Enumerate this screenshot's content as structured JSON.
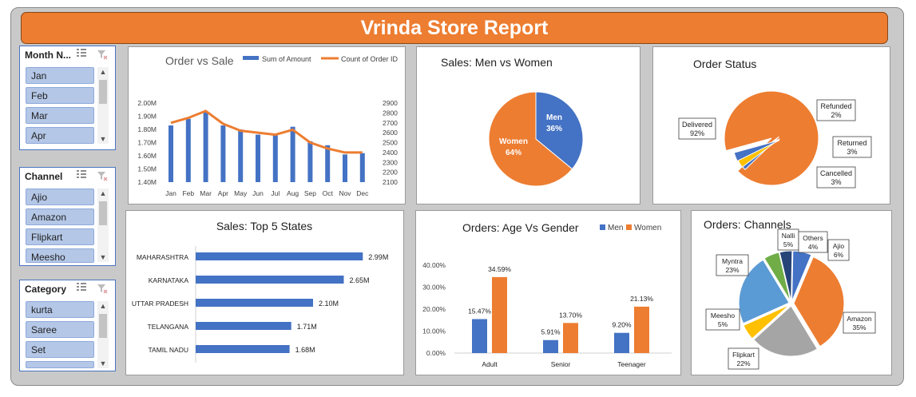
{
  "title": "Vrinda Store Report",
  "colors": {
    "blue": "#4472c4",
    "orange": "#ed7d31",
    "gray": "#a5a5a5",
    "yellow": "#ffc000",
    "lightblue": "#5b9bd5",
    "green": "#70ad47",
    "navy": "#264478"
  },
  "slicers": [
    {
      "title": "Month N...",
      "items": [
        "Jan",
        "Feb",
        "Mar",
        "Apr"
      ]
    },
    {
      "title": "Channel",
      "items": [
        "Ajio",
        "Amazon",
        "Flipkart",
        "Meesho"
      ]
    },
    {
      "title": "Category",
      "items": [
        "kurta",
        "Saree",
        "Set",
        ""
      ]
    }
  ],
  "chart_data": [
    {
      "type": "bar+line",
      "title": "Order vs Sale",
      "categories": [
        "Jan",
        "Feb",
        "Mar",
        "Apr",
        "May",
        "Jun",
        "Jul",
        "Aug",
        "Sep",
        "Oct",
        "Nov",
        "Dec"
      ],
      "series": [
        {
          "name": "Sum of Amount",
          "kind": "bar",
          "axis": "left",
          "values": [
            1.83,
            1.88,
            1.93,
            1.83,
            1.8,
            1.76,
            1.76,
            1.82,
            1.71,
            1.68,
            1.61,
            1.62
          ]
        },
        {
          "name": "Count of Order ID",
          "kind": "line",
          "axis": "right",
          "values": [
            2700,
            2750,
            2820,
            2690,
            2620,
            2600,
            2580,
            2630,
            2500,
            2440,
            2400,
            2400
          ]
        }
      ],
      "yticks_left": [
        "2.00M",
        "1.90M",
        "1.80M",
        "1.70M",
        "1.60M",
        "1.50M",
        "1.40M"
      ],
      "yticks_right": [
        "2900",
        "2800",
        "2700",
        "2600",
        "2500",
        "2400",
        "2300",
        "2200",
        "2100"
      ],
      "ylim_left": [
        1.4,
        2.0
      ],
      "ylim_right": [
        2100,
        2900
      ]
    },
    {
      "type": "pie",
      "title": "Sales: Men vs Women",
      "slices": [
        {
          "label": "Men",
          "pct": "36%",
          "value": 36
        },
        {
          "label": "Women",
          "pct": "64%",
          "value": 64
        }
      ]
    },
    {
      "type": "pie",
      "title": "Order Status",
      "slices": [
        {
          "label": "Delivered",
          "pct": "92%",
          "value": 92
        },
        {
          "label": "Refunded",
          "pct": "2%",
          "value": 2
        },
        {
          "label": "Returned",
          "pct": "3%",
          "value": 3
        },
        {
          "label": "Cancelled",
          "pct": "3%",
          "value": 3
        }
      ]
    },
    {
      "type": "bar",
      "orientation": "horizontal",
      "title": "Sales: Top 5 States",
      "categories": [
        "MAHARASHTRA",
        "KARNATAKA",
        "UTTAR PRADESH",
        "TELANGANA",
        "TAMIL NADU"
      ],
      "values": [
        2.99,
        2.65,
        2.1,
        1.71,
        1.68
      ],
      "labels": [
        "2.99M",
        "2.65M",
        "2.10M",
        "1.71M",
        "1.68M"
      ]
    },
    {
      "type": "bar",
      "title": "Orders: Age Vs Gender",
      "categories": [
        "Adult",
        "Senior",
        "Teenager"
      ],
      "series": [
        {
          "name": "Men",
          "values": [
            15.47,
            5.91,
            9.2
          ],
          "labels": [
            "15.47%",
            "5.91%",
            "9.20%"
          ]
        },
        {
          "name": "Women",
          "values": [
            34.59,
            13.7,
            21.13
          ],
          "labels": [
            "34.59%",
            "13.70%",
            "21.13%"
          ]
        }
      ],
      "yticks": [
        "40.00%",
        "30.00%",
        "20.00%",
        "10.00%",
        "0.00%"
      ],
      "ylim": [
        0,
        40
      ]
    },
    {
      "type": "pie",
      "title": "Orders: Channels",
      "slices": [
        {
          "label": "Amazon",
          "pct": "35%",
          "value": 35
        },
        {
          "label": "Flipkart",
          "pct": "22%",
          "value": 22
        },
        {
          "label": "Meesho",
          "pct": "5%",
          "value": 5
        },
        {
          "label": "Myntra",
          "pct": "23%",
          "value": 23
        },
        {
          "label": "Nalli",
          "pct": "5%",
          "value": 5
        },
        {
          "label": "Others",
          "pct": "4%",
          "value": 4
        },
        {
          "label": "Ajio",
          "pct": "6%",
          "value": 6
        }
      ]
    }
  ]
}
